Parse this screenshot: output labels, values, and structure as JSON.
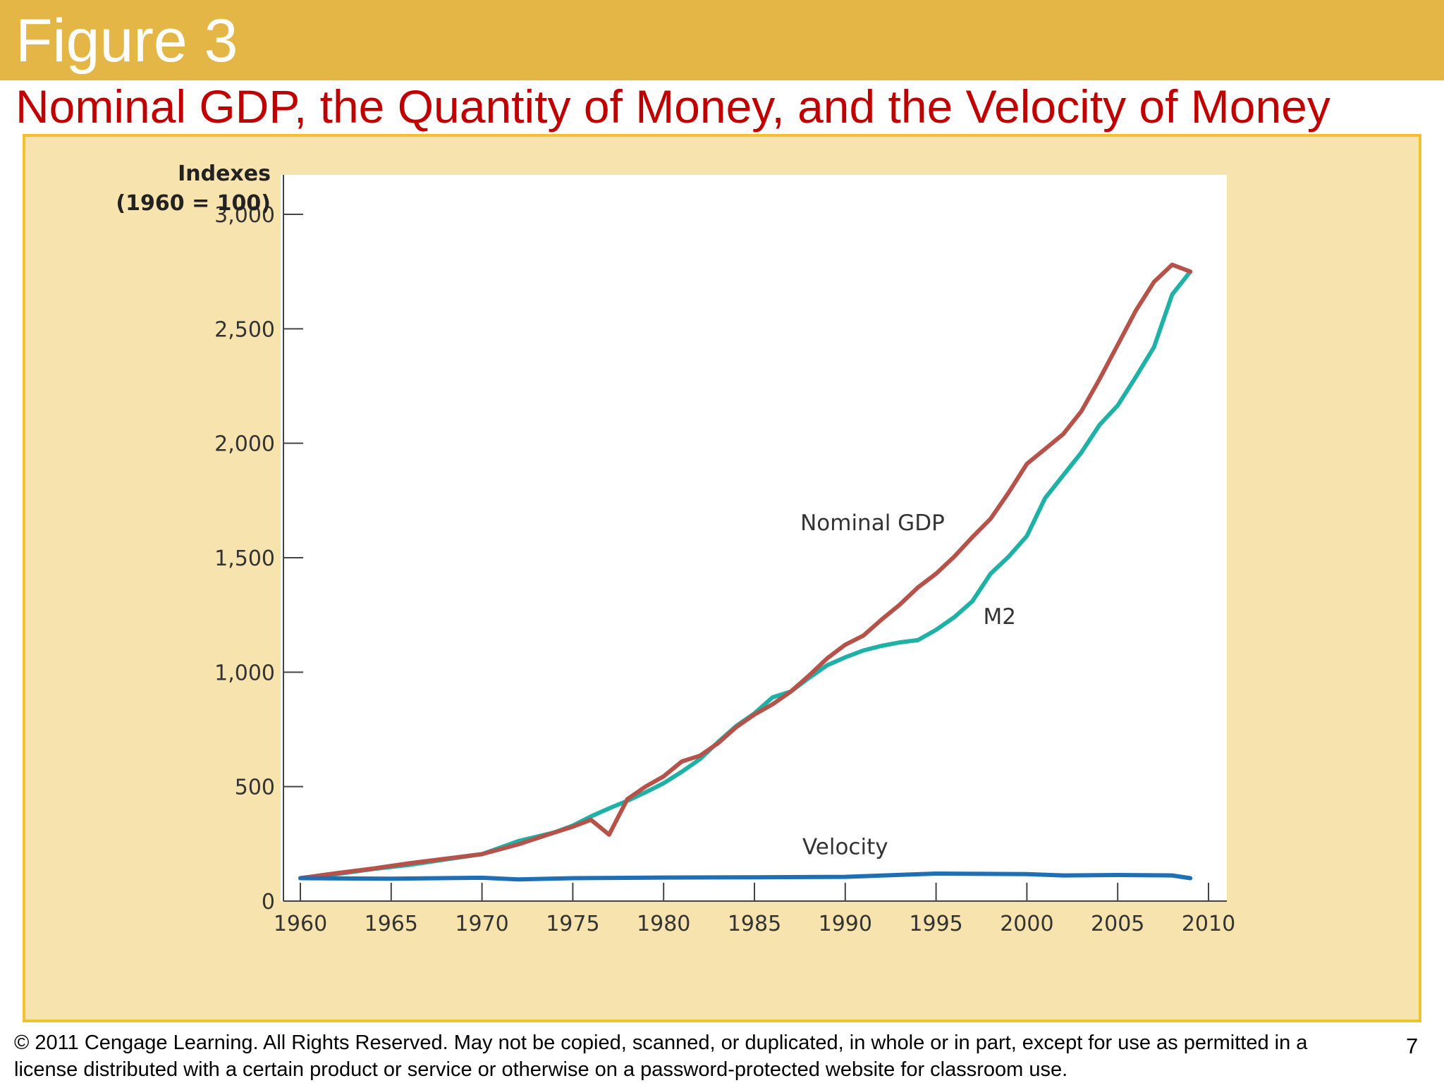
{
  "slide": {
    "figure_label": "Figure 3",
    "title": "Nominal GDP, the Quantity of Money, and the Velocity of Money",
    "copyright": "© 2011 Cengage Learning. All Rights Reserved. May not be copied, scanned, or duplicated, in whole or in part, except for use as permitted in a license distributed with a certain product or service or otherwise on a password-protected website for classroom use.",
    "page_number": "7"
  },
  "colors": {
    "header_band": "#e3b645",
    "title_red": "#c00000",
    "panel_fill": "#f7e3ae",
    "panel_border": "#f2c12e",
    "nominal_gdp": "#b5524a",
    "m2": "#1fb0a6",
    "velocity": "#1f6fb5"
  },
  "chart_data": {
    "type": "line",
    "ylabel": "Indexes\n(1960 = 100)",
    "xlabel": "",
    "xlim": [
      1960,
      2010
    ],
    "ylim": [
      0,
      3000
    ],
    "x_ticks": [
      1960,
      1965,
      1970,
      1975,
      1980,
      1985,
      1990,
      1995,
      2000,
      2005,
      2010
    ],
    "y_ticks": [
      0,
      500,
      1000,
      1500,
      2000,
      2500,
      3000
    ],
    "y_tick_labels": [
      "0",
      "500",
      "1,000",
      "1,500",
      "2,000",
      "2,500",
      "3,000"
    ],
    "grid": false,
    "series": [
      {
        "name": "Nominal GDP",
        "color": "#b5524a",
        "x": [
          1960,
          1962,
          1964,
          1966,
          1968,
          1970,
          1972,
          1974,
          1975,
          1976,
          1977,
          1978,
          1979,
          1980,
          1981,
          1982,
          1983,
          1984,
          1985,
          1986,
          1987,
          1988,
          1989,
          1990,
          1991,
          1992,
          1993,
          1994,
          1995,
          1996,
          1997,
          1998,
          1999,
          2000,
          2001,
          2002,
          2003,
          2004,
          2005,
          2006,
          2007,
          2008,
          2009
        ],
        "y": [
          100,
          122,
          142,
          165,
          185,
          205,
          248,
          300,
          325,
          355,
          290,
          445,
          500,
          545,
          610,
          635,
          690,
          760,
          815,
          860,
          915,
          985,
          1060,
          1120,
          1160,
          1230,
          1295,
          1370,
          1430,
          1505,
          1590,
          1670,
          1785,
          1910,
          1975,
          2040,
          2140,
          2280,
          2430,
          2580,
          2705,
          2780,
          2750
        ]
      },
      {
        "name": "M2",
        "color": "#1fb0a6",
        "x": [
          1960,
          1962,
          1964,
          1966,
          1968,
          1970,
          1972,
          1974,
          1975,
          1976,
          1977,
          1978,
          1979,
          1980,
          1981,
          1982,
          1983,
          1984,
          1985,
          1986,
          1987,
          1988,
          1989,
          1990,
          1991,
          1992,
          1993,
          1994,
          1995,
          1996,
          1997,
          1998,
          1999,
          2000,
          2001,
          2002,
          2003,
          2004,
          2005,
          2006,
          2007,
          2008,
          2009
        ],
        "y": [
          100,
          118,
          140,
          158,
          182,
          205,
          262,
          300,
          330,
          370,
          405,
          438,
          475,
          515,
          565,
          620,
          695,
          765,
          820,
          890,
          915,
          975,
          1030,
          1065,
          1095,
          1115,
          1130,
          1140,
          1185,
          1240,
          1310,
          1430,
          1505,
          1595,
          1760,
          1860,
          1960,
          2080,
          2165,
          2290,
          2420,
          2650,
          2750
        ]
      },
      {
        "name": "Velocity",
        "color": "#1f6fb5",
        "x": [
          1960,
          1965,
          1970,
          1972,
          1975,
          1980,
          1985,
          1990,
          1995,
          2000,
          2002,
          2005,
          2008,
          2009
        ],
        "y": [
          100,
          98,
          102,
          95,
          100,
          103,
          104,
          106,
          120,
          118,
          112,
          114,
          112,
          100
        ]
      }
    ]
  }
}
